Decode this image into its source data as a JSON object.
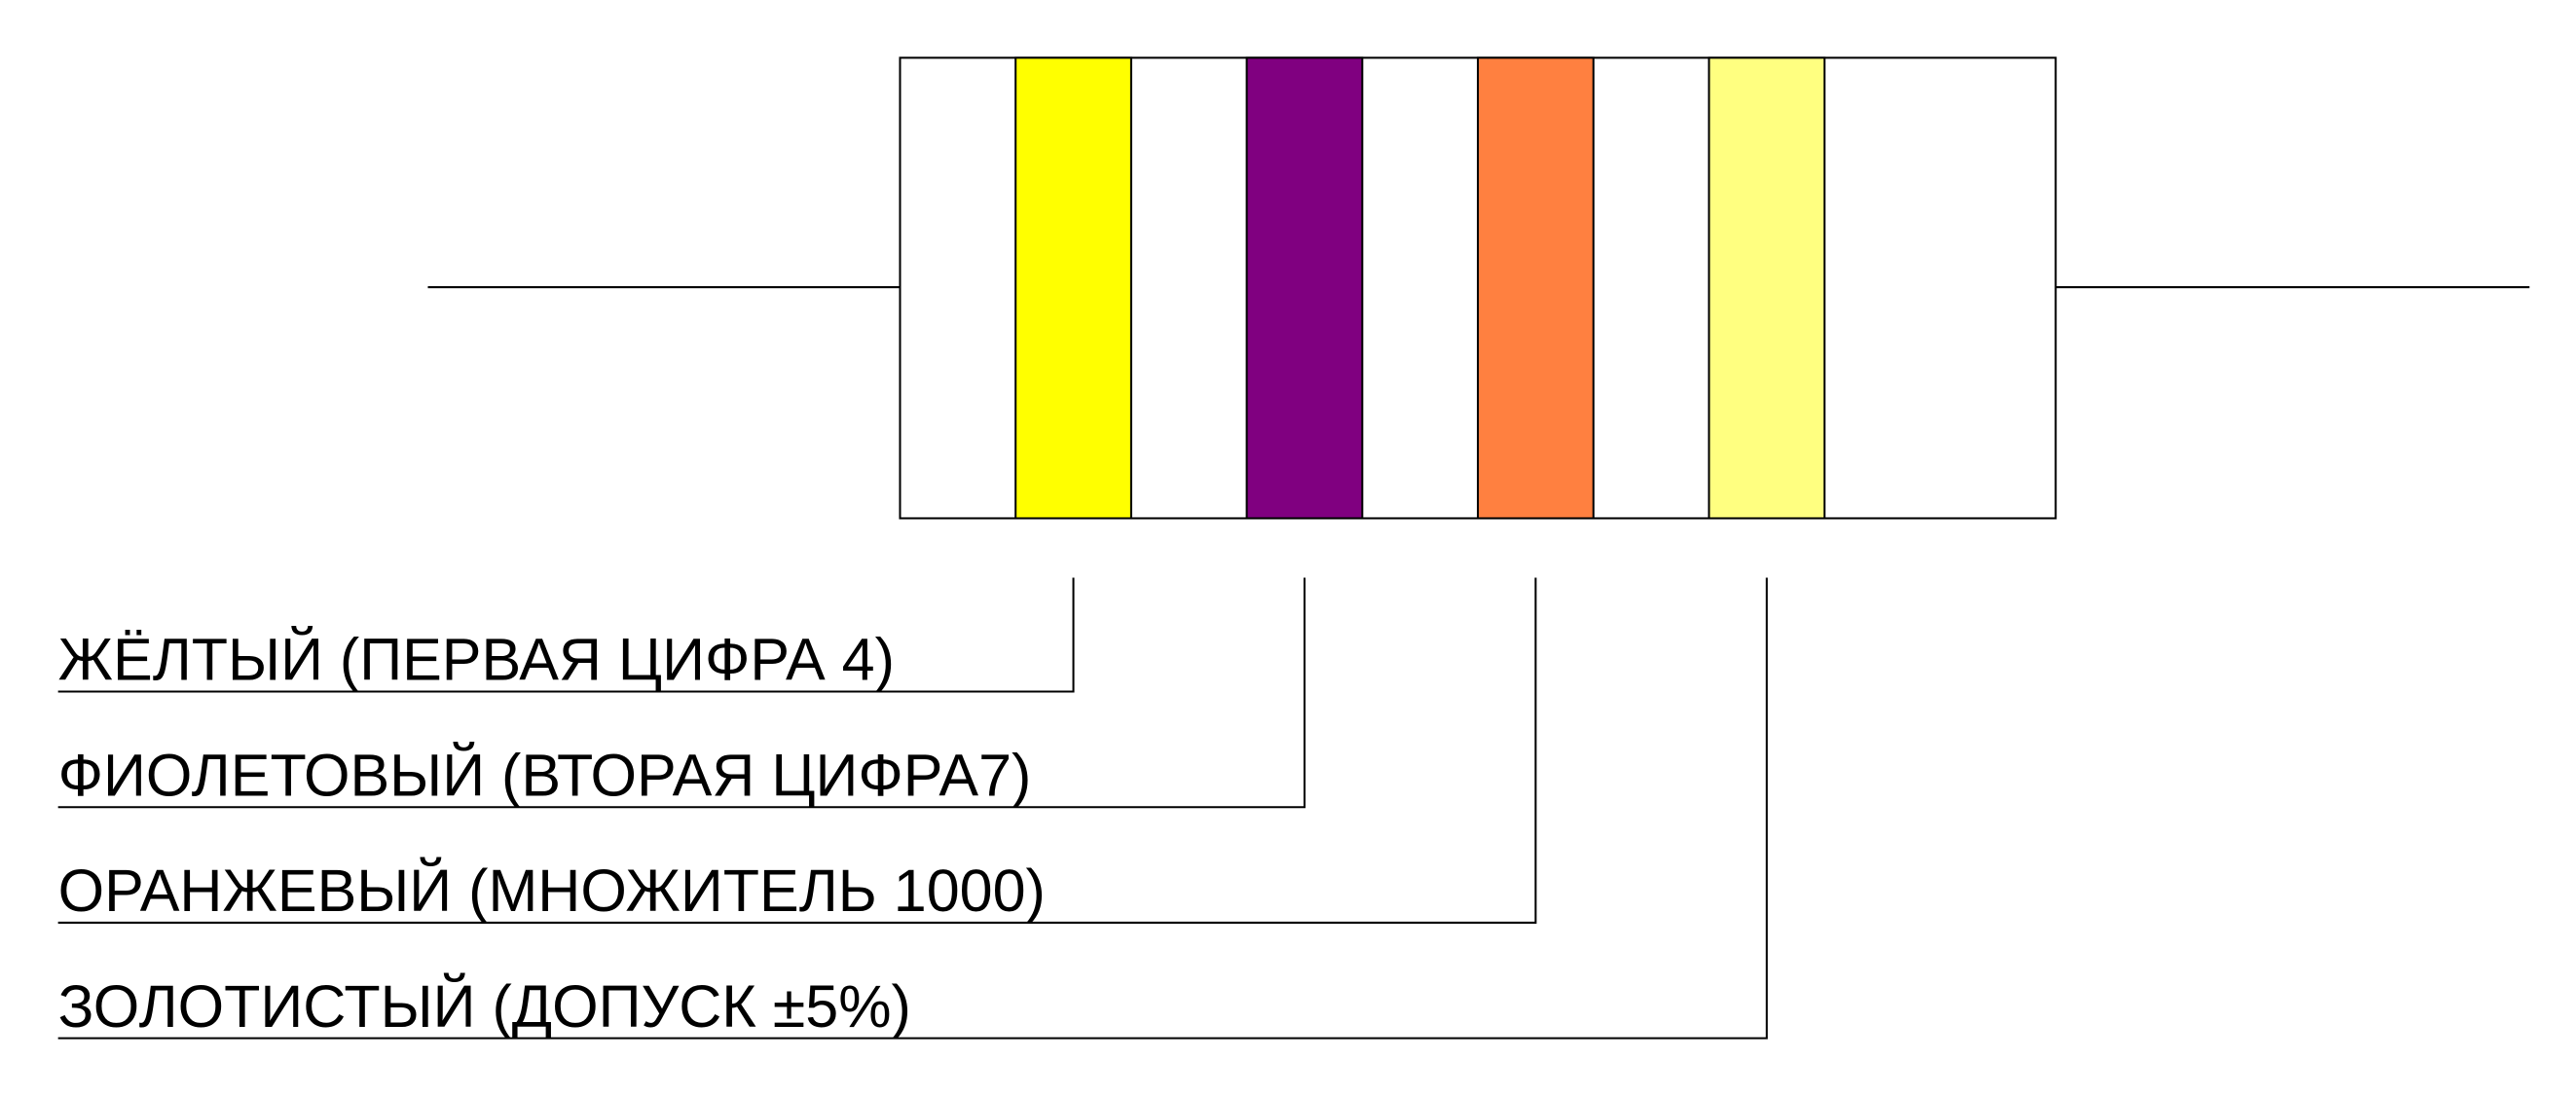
{
  "bands": [
    {
      "label": "ЖЁЛТЫЙ (ПЕРВАЯ ЦИФРА 4)",
      "color": "#ffff00"
    },
    {
      "label": "ФИОЛЕТОВЫЙ (ВТОРАЯ ЦИФРА7)",
      "color": "#800080"
    },
    {
      "label": "ОРАНЖЕВЫЙ (МНОЖИТЕЛЬ 1000)",
      "color": "#ff8040"
    },
    {
      "label": "ЗОЛОТИСТЫЙ (ДОПУСК ±5%)",
      "color": "#ffff80"
    }
  ]
}
